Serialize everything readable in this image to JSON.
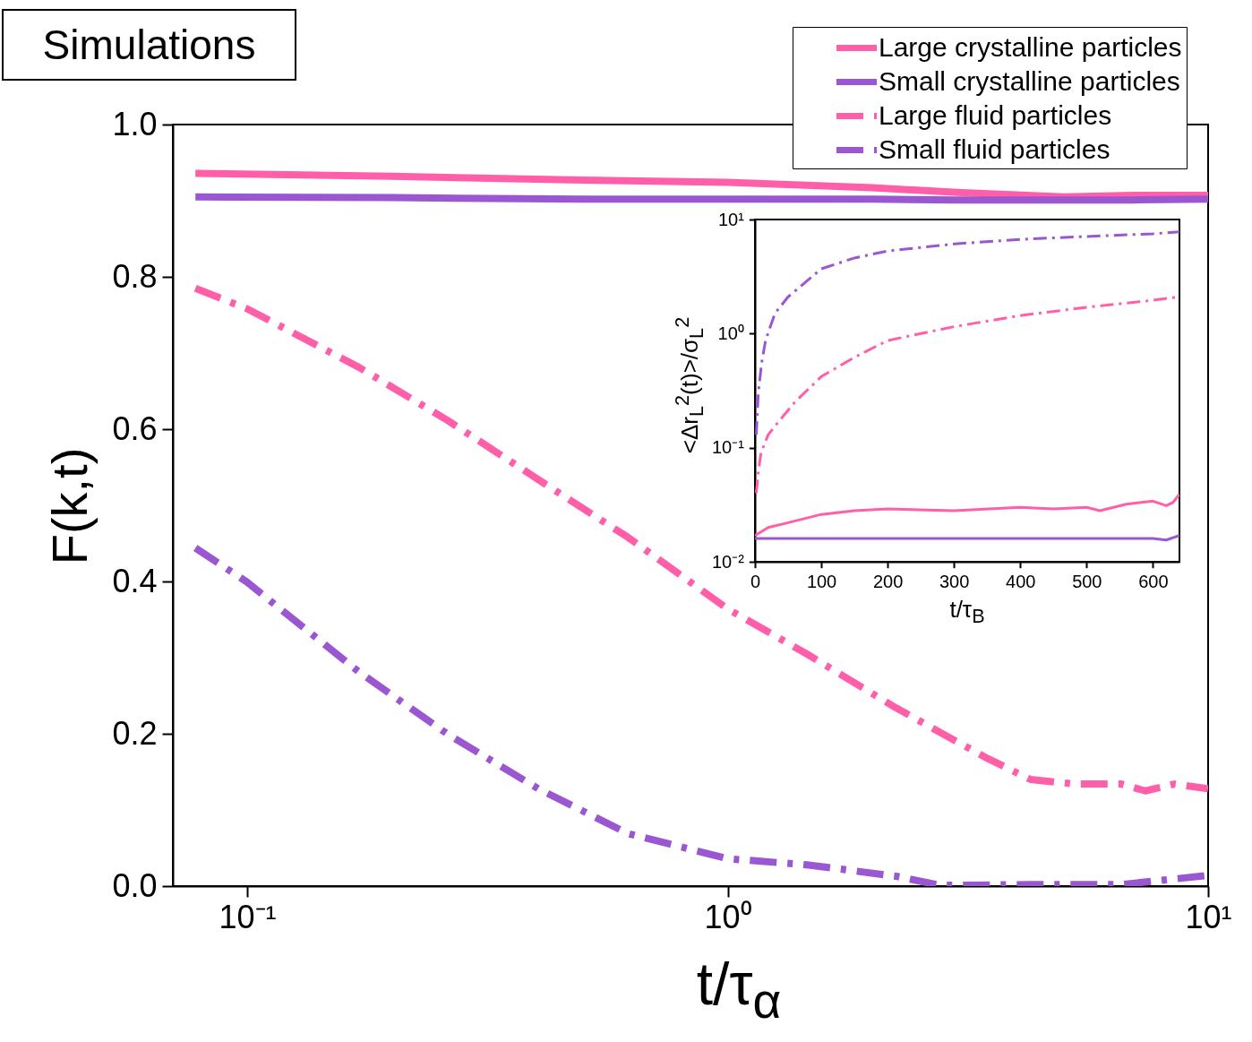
{
  "chart_data": [
    {
      "type": "line",
      "title": "Simulations",
      "xlabel": "t/τ$_{α}$",
      "ylabel": "F(k,t)",
      "log": "x",
      "legend": "top right",
      "xlim": [
        0.07,
        10
      ],
      "xticks": [
        {
          "value": 0.1,
          "label": "10⁻¹"
        },
        {
          "value": 1,
          "label": "10⁰"
        },
        {
          "value": 10,
          "label": "10¹"
        }
      ],
      "ylim": [
        0,
        1
      ],
      "yticks": [
        {
          "value": 0,
          "label": "0.0"
        },
        0.2,
        0.4,
        0.6,
        0.8,
        {
          "value": 1,
          "label": "1.0"
        }
      ],
      "series": [
        {
          "name": "Large crystalline particles",
          "color": "#ff5fa8",
          "line_style": "solid",
          "x": [
            0.078,
            0.2,
            0.5,
            1,
            2,
            3,
            5,
            7,
            10
          ],
          "values": [
            0.936,
            0.932,
            0.927,
            0.924,
            0.917,
            0.911,
            0.905,
            0.907,
            0.907
          ]
        },
        {
          "name": "Small crystalline particles",
          "color": "#9a57d1",
          "line_style": "solid",
          "x": [
            0.078,
            0.2,
            0.5,
            1,
            2,
            3,
            5,
            7,
            10
          ],
          "values": [
            0.905,
            0.904,
            0.902,
            0.902,
            0.902,
            0.901,
            0.901,
            0.901,
            0.902
          ]
        },
        {
          "name": "Large fluid particles",
          "color": "#ff5fa8",
          "line_style": "dashdot",
          "x": [
            0.078,
            0.1,
            0.171,
            0.262,
            0.403,
            0.62,
            1,
            1.46,
            2.24,
            3.44,
            4.27,
            5.3,
            6.6,
            7.4,
            8.5,
            10
          ],
          "values": [
            0.785,
            0.758,
            0.681,
            0.611,
            0.534,
            0.458,
            0.364,
            0.305,
            0.234,
            0.169,
            0.14,
            0.134,
            0.134,
            0.125,
            0.134,
            0.128
          ]
        },
        {
          "name": "Small fluid particles",
          "color": "#9a57d1",
          "line_style": "dashdot",
          "x": [
            0.078,
            0.1,
            0.138,
            0.171,
            0.262,
            0.403,
            0.62,
            1,
            1.46,
            2.24,
            2.77,
            4.27,
            6.6,
            8.1,
            10
          ],
          "values": [
            0.444,
            0.399,
            0.328,
            0.281,
            0.199,
            0.128,
            0.069,
            0.036,
            0.028,
            0.013,
            0.001,
            0.002,
            0.002,
            0.008,
            0.014
          ]
        }
      ]
    },
    {
      "type": "line",
      "xlabel": "t/τ$_{B}$",
      "ylabel": "<Δr$_{L}$$^{2}$(t)>/σ$_{L}$$^{2}$",
      "log": "y",
      "xlim": [
        0,
        640
      ],
      "xticks": [
        0,
        100,
        200,
        300,
        400,
        500,
        600
      ],
      "ylim": [
        0.01,
        10
      ],
      "yticks": [
        {
          "value": 0.01,
          "label": "10⁻²"
        },
        {
          "value": 0.1,
          "label": "10⁻¹"
        },
        {
          "value": 1,
          "label": "10⁰"
        },
        {
          "value": 10,
          "label": "10¹"
        }
      ],
      "series": [
        {
          "color": "#ff5fa8",
          "line_style": "solid",
          "x": [
            0,
            20,
            50,
            100,
            150,
            200,
            300,
            400,
            450,
            500,
            520,
            560,
            600,
            620,
            630,
            640
          ],
          "values": [
            0.017,
            0.02,
            0.022,
            0.026,
            0.028,
            0.029,
            0.028,
            0.03,
            0.029,
            0.03,
            0.028,
            0.032,
            0.034,
            0.031,
            0.033,
            0.039
          ]
        },
        {
          "color": "#9a57d1",
          "line_style": "solid",
          "x": [
            0,
            100,
            200,
            300,
            400,
            500,
            600,
            620,
            640
          ],
          "values": [
            0.016,
            0.016,
            0.016,
            0.016,
            0.016,
            0.016,
            0.016,
            0.0155,
            0.017
          ]
        },
        {
          "color": "#ff5fa8",
          "line_style": "dashdot",
          "x": [
            2,
            5,
            9,
            20,
            36,
            60,
            100,
            150,
            200,
            300,
            400,
            500,
            600,
            640
          ],
          "values": [
            0.04,
            0.06,
            0.09,
            0.13,
            0.17,
            0.25,
            0.42,
            0.62,
            0.87,
            1.15,
            1.44,
            1.7,
            1.96,
            2.1
          ]
        },
        {
          "color": "#9a57d1",
          "line_style": "dashdot",
          "x": [
            2,
            5,
            10,
            16,
            30,
            50,
            100,
            150,
            200,
            300,
            400,
            500,
            600,
            640
          ],
          "values": [
            0.13,
            0.3,
            0.55,
            0.87,
            1.5,
            2.1,
            3.7,
            4.6,
            5.3,
            6.1,
            6.7,
            7.1,
            7.5,
            7.8
          ]
        }
      ]
    }
  ]
}
